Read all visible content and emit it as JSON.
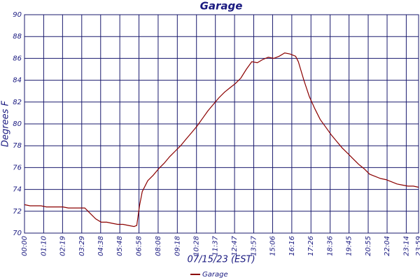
{
  "chart_data": {
    "type": "line",
    "title": "Garage",
    "x_label": "07/15/23 (EST)",
    "y_label": "Degrees F",
    "x": [
      "00:00",
      "00:20",
      "00:40",
      "01:00",
      "01:20",
      "01:40",
      "02:00",
      "02:20",
      "02:40",
      "03:00",
      "03:20",
      "03:40",
      "04:00",
      "04:20",
      "04:40",
      "05:00",
      "05:20",
      "05:40",
      "06:00",
      "06:20",
      "06:40",
      "06:50",
      "07:00",
      "07:10",
      "07:30",
      "07:50",
      "08:10",
      "08:30",
      "08:50",
      "09:10",
      "09:30",
      "09:50",
      "10:10",
      "10:30",
      "10:50",
      "11:10",
      "11:30",
      "11:50",
      "12:10",
      "12:30",
      "12:50",
      "13:10",
      "13:30",
      "13:50",
      "14:10",
      "14:30",
      "14:50",
      "15:10",
      "15:30",
      "15:50",
      "16:10",
      "16:30",
      "16:40",
      "17:00",
      "17:20",
      "17:40",
      "18:00",
      "18:20",
      "18:40",
      "19:00",
      "19:20",
      "19:40",
      "20:00",
      "20:20",
      "20:40",
      "21:00",
      "21:20",
      "21:40",
      "22:00",
      "22:20",
      "22:40",
      "23:00",
      "23:20",
      "23:40",
      "23:59"
    ],
    "series": [
      {
        "name": "Garage",
        "color": "#8b0000",
        "values": [
          72.6,
          72.5,
          72.5,
          72.5,
          72.4,
          72.4,
          72.4,
          72.4,
          72.3,
          72.3,
          72.3,
          72.3,
          71.8,
          71.3,
          71.0,
          71.0,
          70.9,
          70.8,
          70.8,
          70.7,
          70.6,
          70.7,
          72.5,
          73.8,
          74.8,
          75.3,
          75.9,
          76.4,
          77.0,
          77.5,
          78.0,
          78.6,
          79.2,
          79.8,
          80.5,
          81.2,
          81.8,
          82.4,
          82.9,
          83.3,
          83.7,
          84.2,
          85.0,
          85.7,
          85.6,
          85.9,
          86.1,
          86.0,
          86.2,
          86.5,
          86.4,
          86.2,
          85.7,
          84.0,
          82.5,
          81.4,
          80.4,
          79.7,
          79.0,
          78.4,
          77.8,
          77.3,
          76.8,
          76.3,
          75.9,
          75.4,
          75.2,
          75.0,
          74.9,
          74.7,
          74.5,
          74.4,
          74.3,
          74.3,
          74.2
        ]
      }
    ],
    "xlim": [
      "00:00",
      "23:59"
    ],
    "xticks": [
      "00:00",
      "01:10",
      "02:19",
      "03:29",
      "04:38",
      "05:48",
      "06:58",
      "08:08",
      "09:18",
      "10:28",
      "11:37",
      "12:47",
      "13:57",
      "15:06",
      "16:16",
      "17:26",
      "18:36",
      "19:45",
      "20:55",
      "22:04",
      "23:14",
      "23:59"
    ],
    "ylim": [
      70,
      90
    ],
    "yticks": [
      70,
      72,
      74,
      76,
      78,
      80,
      82,
      84,
      86,
      88,
      90
    ],
    "grid": true
  }
}
